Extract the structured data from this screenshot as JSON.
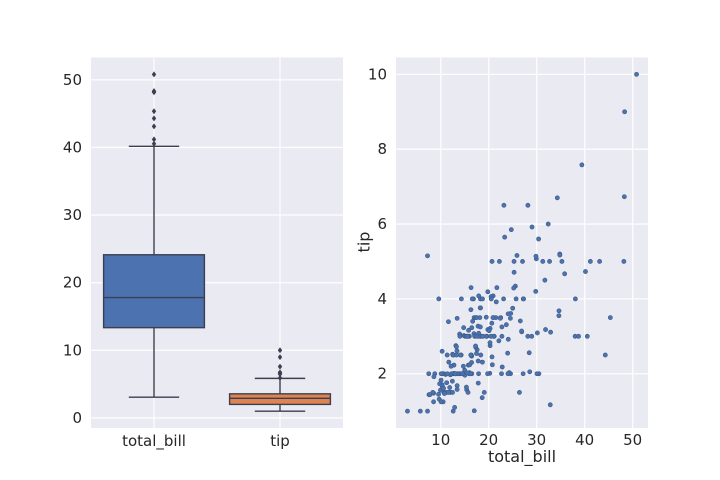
{
  "figure": {
    "background": "#ffffff",
    "axes_background": "#eaeaf2",
    "grid_color": "#ffffff",
    "text_color": "#262626",
    "box_edge_color": "#3b3f4f",
    "tick_fontsize": 15,
    "label_fontsize": 16
  },
  "chart_data": [
    {
      "type": "box",
      "title": "",
      "xlabel": "",
      "ylabel": "",
      "categories": [
        "total_bill",
        "tip"
      ],
      "ylim": [
        -1.49,
        53.3
      ],
      "yticks": [
        0,
        10,
        20,
        30,
        40,
        50
      ],
      "grid": true,
      "legend": false,
      "boxes": [
        {
          "label": "total_bill",
          "color": "#4c72b0",
          "whislo": 3.07,
          "q1": 13.3475,
          "med": 17.795,
          "q3": 24.1275,
          "whishi": 40.17,
          "fliers": [
            40.55,
            41.19,
            43.11,
            44.3,
            45.35,
            48.17,
            48.27,
            48.33,
            50.81
          ]
        },
        {
          "label": "tip",
          "color": "#dd8452",
          "whislo": 1.0,
          "q1": 2.0,
          "med": 2.9,
          "q3": 3.5625,
          "whishi": 5.85,
          "fliers": [
            5.92,
            6.5,
            6.5,
            6.7,
            6.73,
            7.58,
            9.0,
            10.0
          ]
        }
      ]
    },
    {
      "type": "scatter",
      "title": "",
      "xlabel": "total_bill",
      "ylabel": "tip",
      "xlim": [
        0.68,
        53.2
      ],
      "ylim": [
        0.55,
        10.45
      ],
      "xticks": [
        10,
        20,
        30,
        40,
        50
      ],
      "yticks": [
        2,
        4,
        6,
        8,
        10
      ],
      "grid": true,
      "legend": false,
      "marker_color": "#4c72b0",
      "marker_edge_color": "#3c5a85",
      "points": [
        [
          16.99,
          1.01
        ],
        [
          10.34,
          1.66
        ],
        [
          21.01,
          3.5
        ],
        [
          23.68,
          3.31
        ],
        [
          24.59,
          3.61
        ],
        [
          25.29,
          4.71
        ],
        [
          8.77,
          2.0
        ],
        [
          26.88,
          3.12
        ],
        [
          15.04,
          1.96
        ],
        [
          14.78,
          3.23
        ],
        [
          10.27,
          1.71
        ],
        [
          35.26,
          5.0
        ],
        [
          15.42,
          1.57
        ],
        [
          18.43,
          3.0
        ],
        [
          14.83,
          3.02
        ],
        [
          21.58,
          3.92
        ],
        [
          10.33,
          1.67
        ],
        [
          16.29,
          3.71
        ],
        [
          16.97,
          3.5
        ],
        [
          20.65,
          3.35
        ],
        [
          17.92,
          4.08
        ],
        [
          20.29,
          2.75
        ],
        [
          15.77,
          2.23
        ],
        [
          39.42,
          7.58
        ],
        [
          19.82,
          3.18
        ],
        [
          17.81,
          2.34
        ],
        [
          13.37,
          2.0
        ],
        [
          12.69,
          2.0
        ],
        [
          21.7,
          4.3
        ],
        [
          19.65,
          3.0
        ],
        [
          9.55,
          1.45
        ],
        [
          18.35,
          2.5
        ],
        [
          15.06,
          3.0
        ],
        [
          20.69,
          2.45
        ],
        [
          17.78,
          3.27
        ],
        [
          24.06,
          3.6
        ],
        [
          16.31,
          2.0
        ],
        [
          16.93,
          3.07
        ],
        [
          18.69,
          2.31
        ],
        [
          31.27,
          5.0
        ],
        [
          16.04,
          2.24
        ],
        [
          17.46,
          2.54
        ],
        [
          13.94,
          3.06
        ],
        [
          9.68,
          1.32
        ],
        [
          30.4,
          5.6
        ],
        [
          18.29,
          3.0
        ],
        [
          22.23,
          5.0
        ],
        [
          32.4,
          6.0
        ],
        [
          28.55,
          2.05
        ],
        [
          18.04,
          3.0
        ],
        [
          12.54,
          2.5
        ],
        [
          10.29,
          2.6
        ],
        [
          34.81,
          5.2
        ],
        [
          9.94,
          1.56
        ],
        [
          25.56,
          4.34
        ],
        [
          19.49,
          3.51
        ],
        [
          38.01,
          3.0
        ],
        [
          26.41,
          1.5
        ],
        [
          11.24,
          1.76
        ],
        [
          48.27,
          6.73
        ],
        [
          20.29,
          3.21
        ],
        [
          13.81,
          2.0
        ],
        [
          11.02,
          1.98
        ],
        [
          18.29,
          3.76
        ],
        [
          17.59,
          2.64
        ],
        [
          20.08,
          3.15
        ],
        [
          16.45,
          2.47
        ],
        [
          3.07,
          1.0
        ],
        [
          20.23,
          2.01
        ],
        [
          15.01,
          2.09
        ],
        [
          12.02,
          1.97
        ],
        [
          17.07,
          3.0
        ],
        [
          26.86,
          3.14
        ],
        [
          25.28,
          5.0
        ],
        [
          14.73,
          2.2
        ],
        [
          10.51,
          1.25
        ],
        [
          17.92,
          3.08
        ],
        [
          27.2,
          4.0
        ],
        [
          22.76,
          3.0
        ],
        [
          17.29,
          2.71
        ],
        [
          19.44,
          3.0
        ],
        [
          16.66,
          3.4
        ],
        [
          10.07,
          1.83
        ],
        [
          32.68,
          5.0
        ],
        [
          15.98,
          2.03
        ],
        [
          34.83,
          5.17
        ],
        [
          13.03,
          2.0
        ],
        [
          18.28,
          4.0
        ],
        [
          24.71,
          5.85
        ],
        [
          21.16,
          3.0
        ],
        [
          28.97,
          3.0
        ],
        [
          22.49,
          3.5
        ],
        [
          5.75,
          1.0
        ],
        [
          16.32,
          4.3
        ],
        [
          22.75,
          3.25
        ],
        [
          40.17,
          4.73
        ],
        [
          27.28,
          4.0
        ],
        [
          12.03,
          1.5
        ],
        [
          21.01,
          3.0
        ],
        [
          12.46,
          1.5
        ],
        [
          11.35,
          2.5
        ],
        [
          15.38,
          3.0
        ],
        [
          44.3,
          2.5
        ],
        [
          22.42,
          3.48
        ],
        [
          20.92,
          4.08
        ],
        [
          15.36,
          1.64
        ],
        [
          20.49,
          4.06
        ],
        [
          25.21,
          4.29
        ],
        [
          18.24,
          3.76
        ],
        [
          14.31,
          4.0
        ],
        [
          14.0,
          3.0
        ],
        [
          7.25,
          1.0
        ],
        [
          38.07,
          4.0
        ],
        [
          23.95,
          2.55
        ],
        [
          25.71,
          4.0
        ],
        [
          17.31,
          3.5
        ],
        [
          29.93,
          5.07
        ],
        [
          10.65,
          1.5
        ],
        [
          12.43,
          1.8
        ],
        [
          24.08,
          2.92
        ],
        [
          11.69,
          2.31
        ],
        [
          13.42,
          1.68
        ],
        [
          14.26,
          2.5
        ],
        [
          15.95,
          2.0
        ],
        [
          12.48,
          2.52
        ],
        [
          29.8,
          4.2
        ],
        [
          8.52,
          1.48
        ],
        [
          14.52,
          2.0
        ],
        [
          11.38,
          2.0
        ],
        [
          22.82,
          2.18
        ],
        [
          19.08,
          1.5
        ],
        [
          20.27,
          2.83
        ],
        [
          11.17,
          1.5
        ],
        [
          12.26,
          2.0
        ],
        [
          18.26,
          3.25
        ],
        [
          8.51,
          1.25
        ],
        [
          10.33,
          2.0
        ],
        [
          14.15,
          2.0
        ],
        [
          16.0,
          2.0
        ],
        [
          13.16,
          2.75
        ],
        [
          17.47,
          3.5
        ],
        [
          34.3,
          6.7
        ],
        [
          41.19,
          5.0
        ],
        [
          27.05,
          5.0
        ],
        [
          16.43,
          2.3
        ],
        [
          8.35,
          1.5
        ],
        [
          18.64,
          1.36
        ],
        [
          11.87,
          1.63
        ],
        [
          9.78,
          1.73
        ],
        [
          7.51,
          2.0
        ],
        [
          14.07,
          2.5
        ],
        [
          13.13,
          2.0
        ],
        [
          17.26,
          2.74
        ],
        [
          24.55,
          2.0
        ],
        [
          19.77,
          2.0
        ],
        [
          29.85,
          5.14
        ],
        [
          48.17,
          5.0
        ],
        [
          25.0,
          3.75
        ],
        [
          13.39,
          2.61
        ],
        [
          16.49,
          2.0
        ],
        [
          21.5,
          3.5
        ],
        [
          12.66,
          2.5
        ],
        [
          16.21,
          2.0
        ],
        [
          13.81,
          2.0
        ],
        [
          17.51,
          3.0
        ],
        [
          24.52,
          3.48
        ],
        [
          20.76,
          2.24
        ],
        [
          31.71,
          4.5
        ],
        [
          10.59,
          1.61
        ],
        [
          10.63,
          2.0
        ],
        [
          50.81,
          10.0
        ],
        [
          15.81,
          3.16
        ],
        [
          7.25,
          5.15
        ],
        [
          31.85,
          3.18
        ],
        [
          16.82,
          4.0
        ],
        [
          32.9,
          3.11
        ],
        [
          17.89,
          2.0
        ],
        [
          14.48,
          2.0
        ],
        [
          9.6,
          4.0
        ],
        [
          34.63,
          3.55
        ],
        [
          34.65,
          3.68
        ],
        [
          23.33,
          5.65
        ],
        [
          45.35,
          3.5
        ],
        [
          23.17,
          6.5
        ],
        [
          40.55,
          3.0
        ],
        [
          20.69,
          5.0
        ],
        [
          20.9,
          3.5
        ],
        [
          30.46,
          2.0
        ],
        [
          18.15,
          3.5
        ],
        [
          23.1,
          4.0
        ],
        [
          15.69,
          1.5
        ],
        [
          19.81,
          4.19
        ],
        [
          28.44,
          2.56
        ],
        [
          15.48,
          2.02
        ],
        [
          16.58,
          4.0
        ],
        [
          7.56,
          1.44
        ],
        [
          10.34,
          2.0
        ],
        [
          43.11,
          5.0
        ],
        [
          13.0,
          2.0
        ],
        [
          13.51,
          2.0
        ],
        [
          18.71,
          4.0
        ],
        [
          12.74,
          2.01
        ],
        [
          13.0,
          2.0
        ],
        [
          16.4,
          2.5
        ],
        [
          20.53,
          4.0
        ],
        [
          16.47,
          3.23
        ],
        [
          26.59,
          3.41
        ],
        [
          38.73,
          3.0
        ],
        [
          24.27,
          2.03
        ],
        [
          12.76,
          2.23
        ],
        [
          30.06,
          2.0
        ],
        [
          25.89,
          5.16
        ],
        [
          48.33,
          9.0
        ],
        [
          13.27,
          2.5
        ],
        [
          28.17,
          6.5
        ],
        [
          12.9,
          1.1
        ],
        [
          28.15,
          3.0
        ],
        [
          11.59,
          1.5
        ],
        [
          7.74,
          1.44
        ],
        [
          30.14,
          3.09
        ],
        [
          12.16,
          2.2
        ],
        [
          13.42,
          3.48
        ],
        [
          8.58,
          1.92
        ],
        [
          15.98,
          3.0
        ],
        [
          13.42,
          1.58
        ],
        [
          16.27,
          2.5
        ],
        [
          10.09,
          2.0
        ],
        [
          20.45,
          3.0
        ],
        [
          13.28,
          2.72
        ],
        [
          22.12,
          2.88
        ],
        [
          24.01,
          2.0
        ],
        [
          15.69,
          3.0
        ],
        [
          11.61,
          3.39
        ],
        [
          10.77,
          1.47
        ],
        [
          15.53,
          3.0
        ],
        [
          10.07,
          1.25
        ],
        [
          12.6,
          1.0
        ],
        [
          32.83,
          1.17
        ],
        [
          35.83,
          4.67
        ],
        [
          29.03,
          5.92
        ],
        [
          27.18,
          2.0
        ],
        [
          22.67,
          2.0
        ],
        [
          17.82,
          1.75
        ],
        [
          18.78,
          3.0
        ]
      ]
    }
  ]
}
